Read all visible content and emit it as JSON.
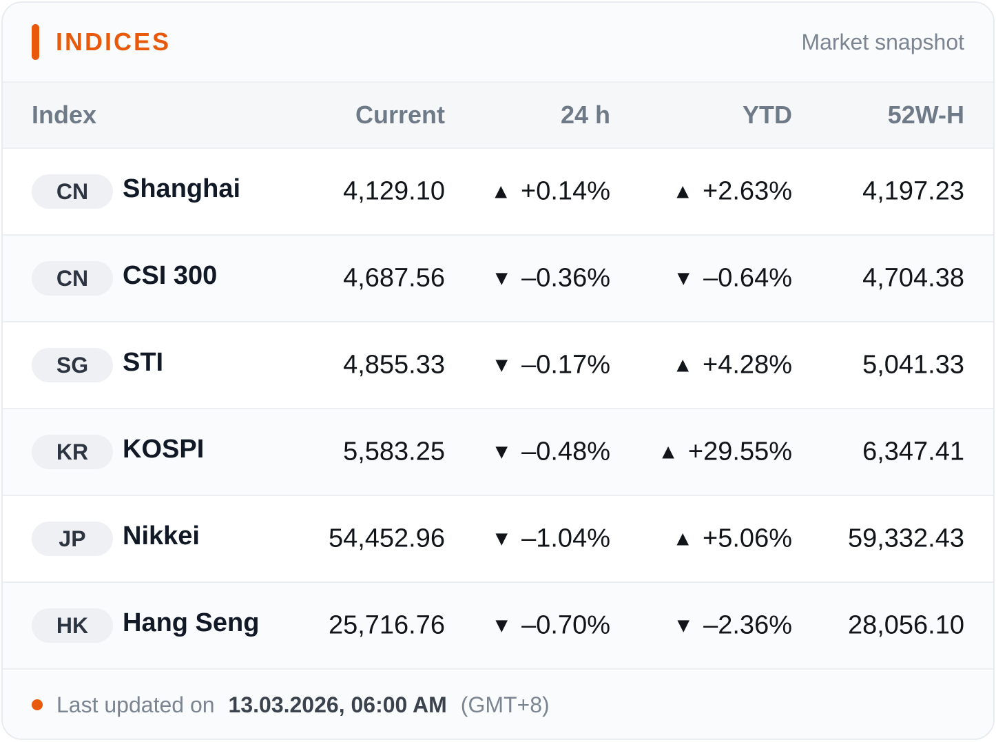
{
  "header": {
    "title": "INDICES",
    "subtitle": "Market snapshot",
    "accent_color": "#e8590c"
  },
  "columns": {
    "index": "Index",
    "current": "Current",
    "change_24h": "24 h",
    "ytd": "YTD",
    "high_52w": "52W-H"
  },
  "rows": [
    {
      "country": "CN",
      "name": "Shanghai",
      "current": "4,129.10",
      "change_24h": "+0.14%",
      "change_24h_dir": "up",
      "ytd": "+2.63%",
      "ytd_dir": "up",
      "high_52w": "4,197.23"
    },
    {
      "country": "CN",
      "name": "CSI 300",
      "current": "4,687.56",
      "change_24h": "–0.36%",
      "change_24h_dir": "down",
      "ytd": "–0.64%",
      "ytd_dir": "down",
      "high_52w": "4,704.38"
    },
    {
      "country": "SG",
      "name": "STI",
      "current": "4,855.33",
      "change_24h": "–0.17%",
      "change_24h_dir": "down",
      "ytd": "+4.28%",
      "ytd_dir": "up",
      "high_52w": "5,041.33"
    },
    {
      "country": "KR",
      "name": "KOSPI",
      "current": "5,583.25",
      "change_24h": "–0.48%",
      "change_24h_dir": "down",
      "ytd": "+29.55%",
      "ytd_dir": "up",
      "high_52w": "6,347.41"
    },
    {
      "country": "JP",
      "name": "Nikkei",
      "current": "54,452.96",
      "change_24h": "–1.04%",
      "change_24h_dir": "down",
      "ytd": "+5.06%",
      "ytd_dir": "up",
      "high_52w": "59,332.43"
    },
    {
      "country": "HK",
      "name": "Hang Seng",
      "current": "25,716.76",
      "change_24h": "–0.70%",
      "change_24h_dir": "down",
      "ytd": "–2.36%",
      "ytd_dir": "down",
      "high_52w": "28,056.10"
    }
  ],
  "icons": {
    "up": "▲",
    "down": "▼"
  },
  "colors": {
    "up": "#16a34a",
    "down": "#dc2f3a"
  },
  "footer": {
    "label": "Last updated on",
    "datetime": "13.03.2026, 06:00 AM",
    "timezone": "(GMT+8)"
  }
}
